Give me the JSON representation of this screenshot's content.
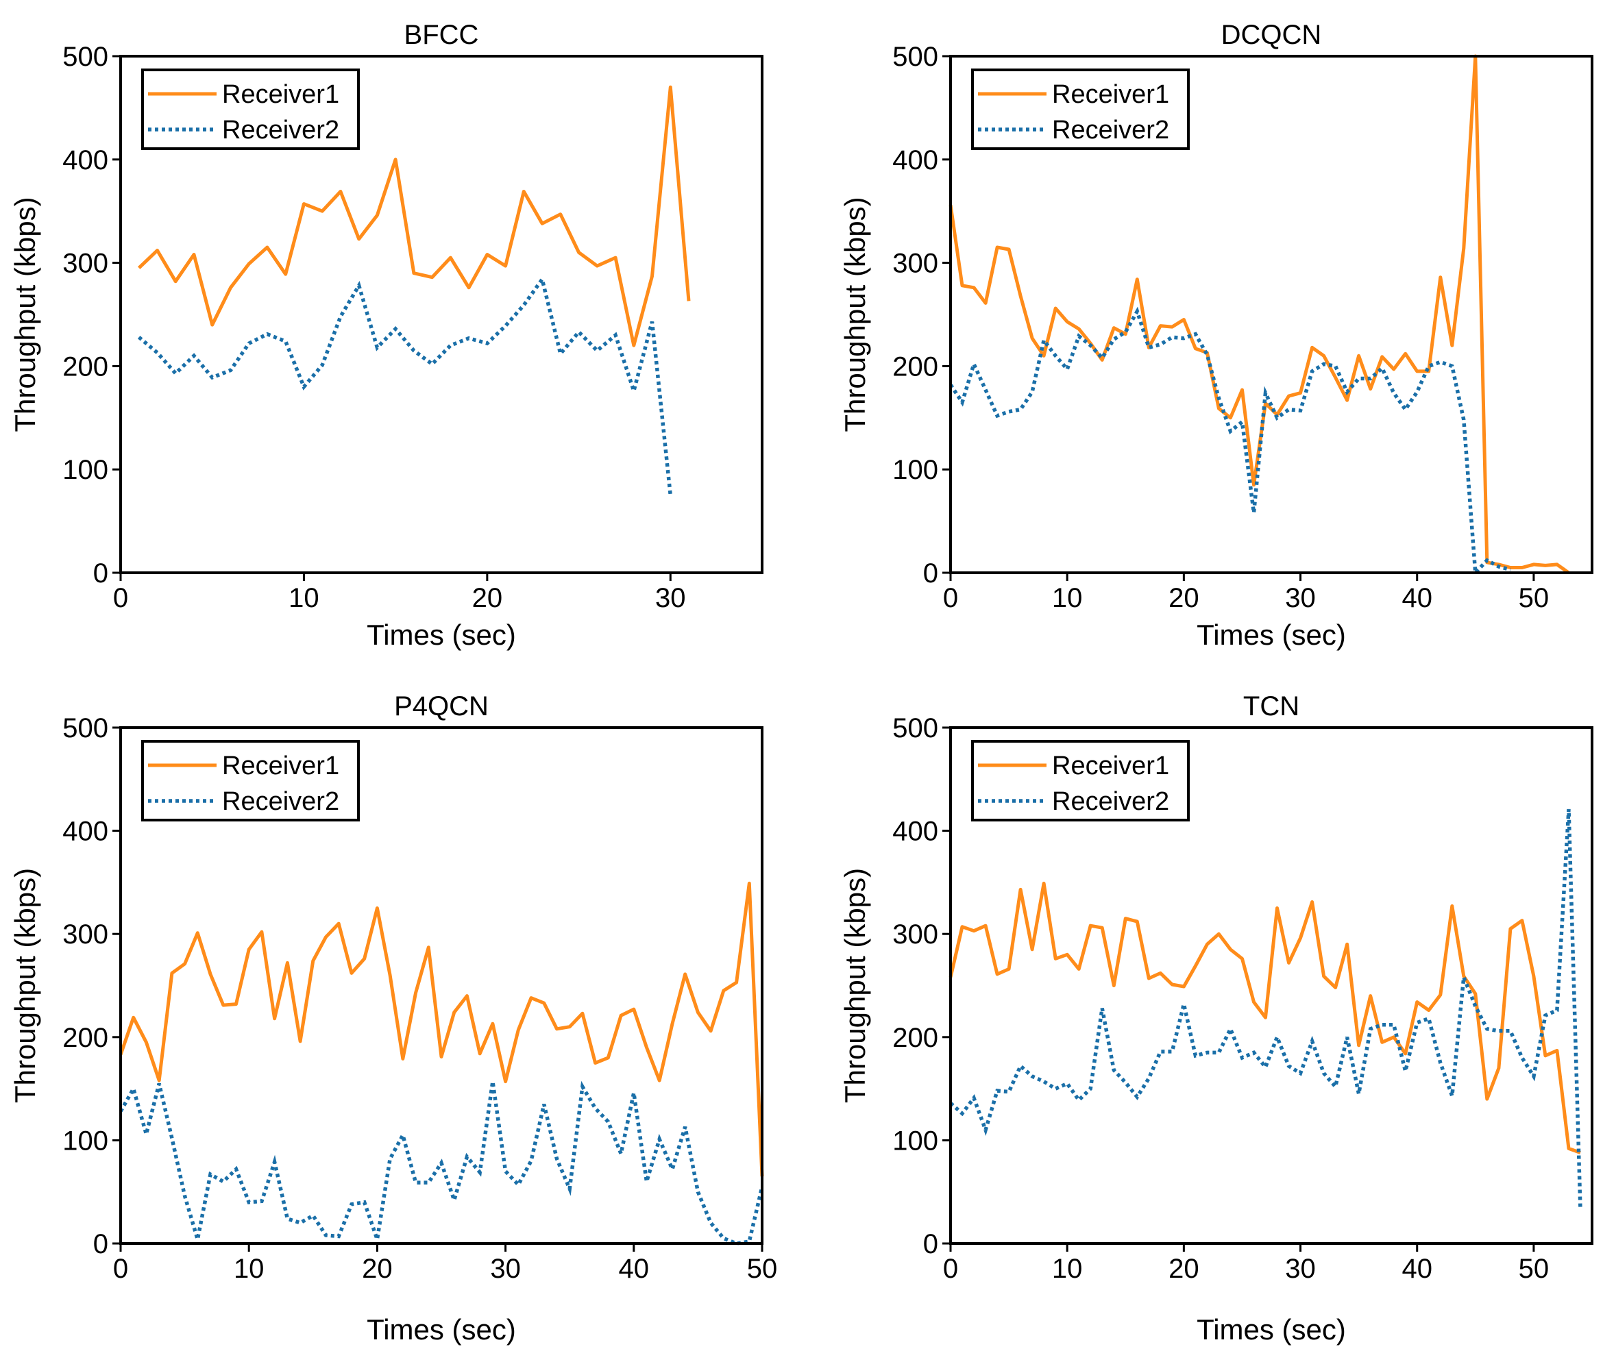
{
  "colors": {
    "receiver1": "#ff8c1a",
    "receiver2": "#1a6fa8"
  },
  "chart_data": [
    {
      "type": "line",
      "title": "BFCC",
      "xlabel": "Times (sec)",
      "ylabel": "Throughput (kbps)",
      "xlim": [
        0,
        35
      ],
      "ylim": [
        0,
        500
      ],
      "xticks": [
        "0",
        "10",
        "20",
        "30"
      ],
      "yticks": [
        "0",
        "100",
        "200",
        "300",
        "400",
        "500"
      ],
      "legend": {
        "position": "top-left",
        "entries": [
          "Receiver1",
          "Receiver2"
        ]
      },
      "series": [
        {
          "name": "Receiver1",
          "style": "solid",
          "x": [
            1,
            2,
            3,
            4,
            5,
            6,
            7,
            8,
            9,
            10,
            11,
            12,
            13,
            14,
            15,
            16,
            17,
            18,
            19,
            20,
            21,
            22,
            23,
            24,
            25,
            26,
            27,
            28,
            29,
            30,
            31
          ],
          "y": [
            295,
            312,
            282,
            308,
            240,
            276,
            299,
            315,
            289,
            357,
            350,
            369,
            323,
            346,
            400,
            290,
            286,
            305,
            276,
            308,
            297,
            369,
            338,
            347,
            310,
            297,
            305,
            220,
            287,
            470,
            263
          ]
        },
        {
          "name": "Receiver2",
          "style": "dotted",
          "x": [
            1,
            2,
            3,
            4,
            5,
            6,
            7,
            8,
            9,
            10,
            11,
            12,
            13,
            14,
            15,
            16,
            17,
            18,
            19,
            20,
            21,
            22,
            23,
            24,
            25,
            26,
            27,
            28,
            29,
            30
          ],
          "y": [
            228,
            213,
            193,
            210,
            189,
            196,
            222,
            231,
            224,
            180,
            201,
            248,
            278,
            218,
            236,
            215,
            202,
            220,
            227,
            222,
            239,
            259,
            284,
            212,
            233,
            215,
            230,
            176,
            243,
            75
          ]
        }
      ]
    },
    {
      "type": "line",
      "title": "DCQCN",
      "xlabel": "Times (sec)",
      "ylabel": "Throughput (kbps)",
      "xlim": [
        0,
        55
      ],
      "ylim": [
        0,
        500
      ],
      "xticks": [
        "0",
        "10",
        "20",
        "30",
        "40",
        "50"
      ],
      "yticks": [
        "0",
        "100",
        "200",
        "300",
        "400",
        "500"
      ],
      "legend": {
        "position": "top-left",
        "entries": [
          "Receiver1",
          "Receiver2"
        ]
      },
      "series": [
        {
          "name": "Receiver1",
          "style": "solid",
          "x": [
            0,
            1,
            2,
            3,
            4,
            5,
            6,
            7,
            8,
            9,
            10,
            11,
            12,
            13,
            14,
            15,
            16,
            17,
            18,
            19,
            20,
            21,
            22,
            23,
            24,
            25,
            26,
            27,
            28,
            29,
            30,
            31,
            32,
            33,
            34,
            35,
            36,
            37,
            38,
            39,
            40,
            41,
            42,
            43,
            44,
            45,
            46,
            47,
            48,
            49,
            50,
            51,
            52,
            53
          ],
          "y": [
            356,
            278,
            276,
            261,
            315,
            313,
            268,
            227,
            210,
            256,
            243,
            236,
            222,
            206,
            237,
            231,
            284,
            218,
            239,
            238,
            245,
            217,
            213,
            159,
            150,
            177,
            85,
            164,
            153,
            171,
            174,
            218,
            210,
            189,
            167,
            210,
            178,
            209,
            197,
            212,
            195,
            195,
            286,
            220,
            314,
            500,
            10,
            8,
            5,
            5,
            8,
            7,
            8,
            0
          ]
        },
        {
          "name": "Receiver2",
          "style": "dotted",
          "x": [
            0,
            1,
            2,
            3,
            4,
            5,
            6,
            7,
            8,
            9,
            10,
            11,
            12,
            13,
            14,
            15,
            16,
            17,
            18,
            19,
            20,
            21,
            22,
            23,
            24,
            25,
            26,
            27,
            28,
            29,
            30,
            31,
            32,
            33,
            34,
            35,
            36,
            37,
            38,
            39,
            40,
            41,
            42,
            43,
            44,
            45,
            46,
            47,
            48
          ],
          "y": [
            182,
            165,
            202,
            177,
            152,
            156,
            158,
            175,
            225,
            210,
            197,
            229,
            220,
            208,
            226,
            233,
            253,
            218,
            221,
            228,
            227,
            231,
            211,
            169,
            137,
            146,
            58,
            174,
            150,
            158,
            157,
            195,
            202,
            200,
            175,
            188,
            188,
            198,
            174,
            158,
            175,
            200,
            204,
            200,
            148,
            0,
            12,
            6,
            3
          ]
        }
      ]
    },
    {
      "type": "line",
      "title": "P4QCN",
      "xlabel": "Times (sec)",
      "ylabel": "Throughput (kbps)",
      "xlim": [
        0,
        50
      ],
      "ylim": [
        0,
        500
      ],
      "xticks": [
        "0",
        "10",
        "20",
        "30",
        "40",
        "50"
      ],
      "yticks": [
        "0",
        "100",
        "200",
        "300",
        "400",
        "500"
      ],
      "legend": {
        "position": "top-left",
        "entries": [
          "Receiver1",
          "Receiver2"
        ]
      },
      "series": [
        {
          "name": "Receiver1",
          "style": "solid",
          "x": [
            0,
            1,
            2,
            3,
            4,
            5,
            6,
            7,
            8,
            9,
            10,
            11,
            12,
            13,
            14,
            15,
            16,
            17,
            18,
            19,
            20,
            21,
            22,
            23,
            24,
            25,
            26,
            27,
            28,
            29,
            30,
            31,
            32,
            33,
            34,
            35,
            36,
            37,
            38,
            39,
            40,
            41,
            42,
            43,
            44,
            45,
            46,
            47,
            48,
            49,
            50
          ],
          "y": [
            183,
            219,
            195,
            158,
            262,
            271,
            301,
            261,
            231,
            232,
            285,
            302,
            218,
            272,
            196,
            274,
            297,
            310,
            262,
            276,
            325,
            260,
            179,
            243,
            287,
            181,
            224,
            240,
            184,
            213,
            157,
            207,
            238,
            233,
            208,
            210,
            223,
            175,
            180,
            221,
            227,
            190,
            158,
            213,
            261,
            224,
            206,
            245,
            253,
            349,
            65
          ]
        },
        {
          "name": "Receiver2",
          "style": "dotted",
          "x": [
            0,
            1,
            2,
            3,
            4,
            5,
            6,
            7,
            8,
            9,
            10,
            11,
            12,
            13,
            14,
            15,
            16,
            17,
            18,
            19,
            20,
            21,
            22,
            23,
            24,
            25,
            26,
            27,
            28,
            29,
            30,
            31,
            32,
            33,
            34,
            35,
            36,
            37,
            38,
            39,
            40,
            41,
            42,
            43,
            44,
            45,
            46,
            47,
            48,
            49,
            50
          ],
          "y": [
            128,
            150,
            106,
            155,
            102,
            46,
            4,
            67,
            60,
            72,
            40,
            41,
            79,
            24,
            20,
            27,
            8,
            7,
            38,
            40,
            4,
            82,
            105,
            59,
            59,
            78,
            42,
            84,
            69,
            157,
            70,
            57,
            80,
            135,
            82,
            53,
            152,
            131,
            118,
            87,
            146,
            60,
            101,
            72,
            113,
            50,
            20,
            5,
            0,
            2,
            55
          ]
        }
      ]
    },
    {
      "type": "line",
      "title": "TCN",
      "xlabel": "Times (sec)",
      "ylabel": "Throughput (kbps)",
      "xlim": [
        0,
        55
      ],
      "ylim": [
        0,
        500
      ],
      "xticks": [
        "0",
        "10",
        "20",
        "30",
        "40",
        "50"
      ],
      "yticks": [
        "0",
        "100",
        "200",
        "300",
        "400",
        "500"
      ],
      "legend": {
        "position": "top-left",
        "entries": [
          "Receiver1",
          "Receiver2"
        ]
      },
      "series": [
        {
          "name": "Receiver1",
          "style": "solid",
          "x": [
            0,
            1,
            2,
            3,
            4,
            5,
            6,
            7,
            8,
            9,
            10,
            11,
            12,
            13,
            14,
            15,
            16,
            17,
            18,
            19,
            20,
            21,
            22,
            23,
            24,
            25,
            26,
            27,
            28,
            29,
            30,
            31,
            32,
            33,
            34,
            35,
            36,
            37,
            38,
            39,
            40,
            41,
            42,
            43,
            44,
            45,
            46,
            47,
            48,
            49,
            50,
            51,
            52,
            53,
            54
          ],
          "y": [
            258,
            307,
            303,
            308,
            261,
            266,
            343,
            285,
            349,
            276,
            280,
            266,
            308,
            306,
            250,
            315,
            312,
            257,
            262,
            251,
            249,
            269,
            290,
            300,
            285,
            276,
            234,
            219,
            325,
            272,
            296,
            331,
            259,
            248,
            290,
            192,
            240,
            195,
            200,
            184,
            234,
            226,
            241,
            327,
            259,
            242,
            140,
            170,
            305,
            313,
            259,
            182,
            187,
            92,
            88
          ]
        },
        {
          "name": "Receiver2",
          "style": "dotted",
          "x": [
            0,
            1,
            2,
            3,
            4,
            5,
            6,
            7,
            8,
            9,
            10,
            11,
            12,
            13,
            14,
            15,
            16,
            17,
            18,
            19,
            20,
            21,
            22,
            23,
            24,
            25,
            26,
            27,
            28,
            29,
            30,
            31,
            32,
            33,
            34,
            35,
            36,
            37,
            38,
            39,
            40,
            41,
            42,
            43,
            44,
            45,
            46,
            47,
            48,
            49,
            50,
            51,
            52,
            53,
            54
          ],
          "y": [
            136,
            126,
            141,
            110,
            148,
            147,
            172,
            162,
            157,
            150,
            155,
            139,
            150,
            228,
            168,
            156,
            142,
            160,
            186,
            186,
            232,
            182,
            185,
            185,
            208,
            180,
            185,
            171,
            200,
            172,
            165,
            196,
            165,
            152,
            200,
            145,
            208,
            212,
            212,
            167,
            214,
            218,
            175,
            143,
            258,
            230,
            208,
            206,
            206,
            180,
            162,
            221,
            226,
            421,
            33
          ]
        }
      ]
    }
  ]
}
